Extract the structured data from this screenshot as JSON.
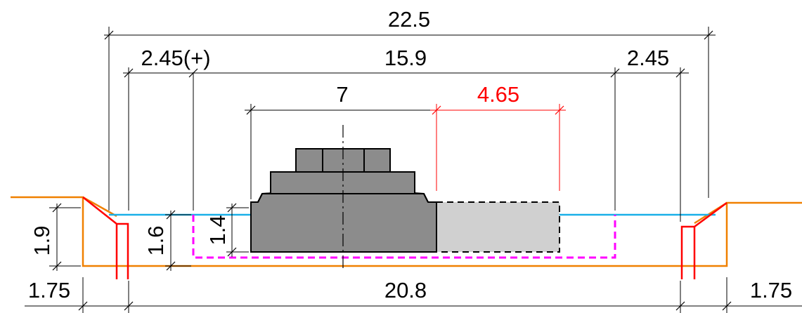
{
  "dimensions": {
    "total_width_top": "22.5",
    "left_offset": "2.45(+)",
    "channel_width": "15.9",
    "right_offset": "2.45",
    "ship_width": "7",
    "passing_width": "4.65",
    "bottom_width": "20.8",
    "left_berm": "1.75",
    "right_berm": "1.75",
    "bank_height": "1.9",
    "channel_depth": "1.6",
    "draft": "1.4"
  },
  "colors": {
    "bank": "#f08000",
    "water": "#1ab0e8",
    "piles": "#ff0000",
    "passing_dim": "#ff0000",
    "channel_profile": "#ff00ff",
    "ship_hull": "#8c8c8c",
    "passing_ship": "#d0d0d0"
  }
}
